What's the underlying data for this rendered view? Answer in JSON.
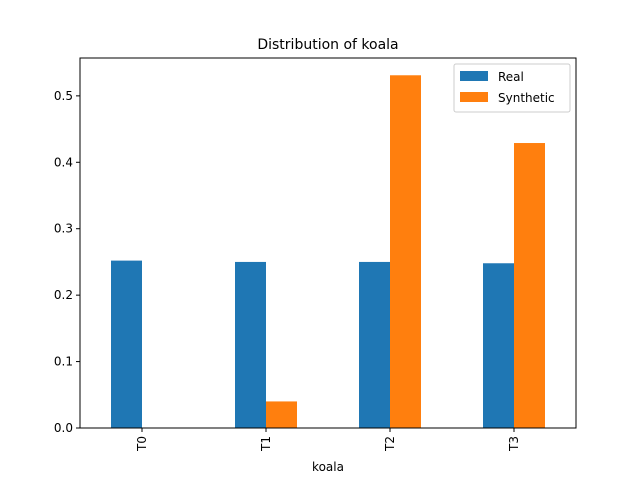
{
  "chart_data": {
    "type": "bar",
    "title": "Distribution of koala",
    "xlabel": "koala",
    "ylabel": "",
    "categories": [
      "T0",
      "T1",
      "T2",
      "T3"
    ],
    "series": [
      {
        "name": "Real",
        "color": "#1f77b4",
        "values": [
          0.252,
          0.25,
          0.25,
          0.248
        ]
      },
      {
        "name": "Synthetic",
        "color": "#ff7f0e",
        "values": [
          0.0,
          0.04,
          0.531,
          0.429
        ]
      }
    ],
    "ylim": [
      0,
      0.557
    ],
    "yticks": [
      "0.0",
      "0.1",
      "0.2",
      "0.3",
      "0.4",
      "0.5"
    ],
    "legend": "top-right",
    "grid": false
  }
}
